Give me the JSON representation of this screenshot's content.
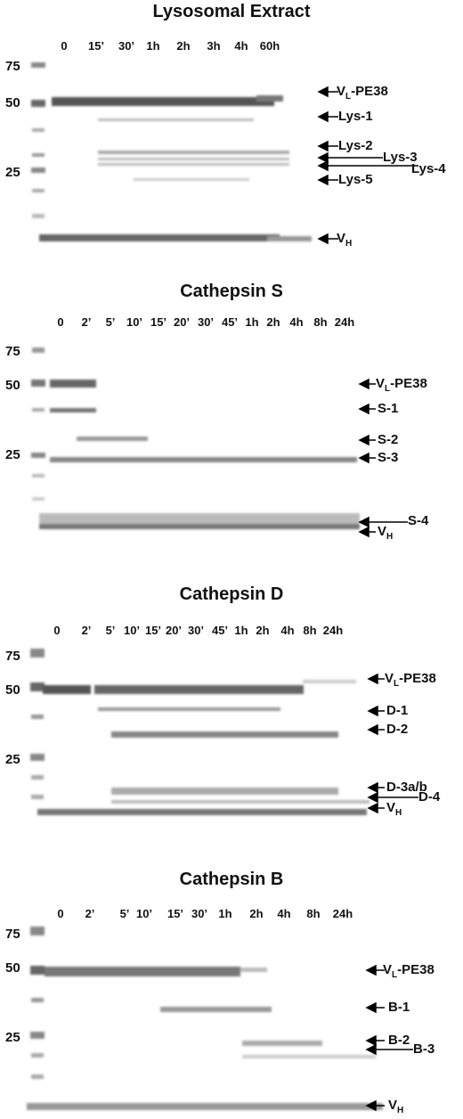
{
  "panels": [
    {
      "title": "Lysosomal Extract",
      "lanes": [
        "0",
        "15’",
        "30’",
        "1h",
        "2h",
        "3h",
        "4h",
        "60h"
      ],
      "markers": [
        "75",
        "50",
        "25"
      ],
      "bands": [
        {
          "main": "V",
          "sub": "L",
          "rest": "-PE38"
        },
        {
          "main": "Lys-1"
        },
        {
          "main": "Lys-2"
        },
        {
          "main": "Lys-3"
        },
        {
          "main": "Lys-4"
        },
        {
          "main": "Lys-5"
        },
        {
          "main": "V",
          "sub": "H"
        }
      ]
    },
    {
      "title": "Cathepsin S",
      "lanes": [
        "0",
        "2’",
        "5’",
        "10’",
        "15’",
        "20’",
        "30’",
        "45’",
        "1h",
        "2h",
        "4h",
        "8h",
        "24h"
      ],
      "markers": [
        "75",
        "50",
        "25"
      ],
      "bands": [
        {
          "main": "V",
          "sub": "L",
          "rest": "-PE38"
        },
        {
          "main": "S-1"
        },
        {
          "main": "S-2"
        },
        {
          "main": "S-3"
        },
        {
          "main": "S-4"
        },
        {
          "main": "V",
          "sub": "H"
        }
      ]
    },
    {
      "title": "Cathepsin D",
      "lanes": [
        "0",
        "2’",
        "5’",
        "10’",
        "15’",
        "20’",
        "30’",
        "45’",
        "1h",
        "2h",
        "4h",
        "8h",
        "24h"
      ],
      "markers": [
        "75",
        "50",
        "25"
      ],
      "bands": [
        {
          "main": "V",
          "sub": "L",
          "rest": "-PE38"
        },
        {
          "main": "D-1"
        },
        {
          "main": "D-2"
        },
        {
          "main": "D-3a/b"
        },
        {
          "main": "D-4"
        },
        {
          "main": "V",
          "sub": "H"
        }
      ]
    },
    {
      "title": "Cathepsin B",
      "lanes": [
        "0",
        "2’",
        "5’",
        "10’",
        "15’",
        "30’",
        "1h",
        "2h",
        "4h",
        "8h",
        "24h"
      ],
      "markers": [
        "75",
        "50",
        "25"
      ],
      "bands": [
        {
          "main": "V",
          "sub": "L",
          "rest": "-PE38"
        },
        {
          "main": "B-1"
        },
        {
          "main": "B-2"
        },
        {
          "main": "B-3"
        },
        {
          "main": "V",
          "sub": "H"
        }
      ]
    }
  ]
}
